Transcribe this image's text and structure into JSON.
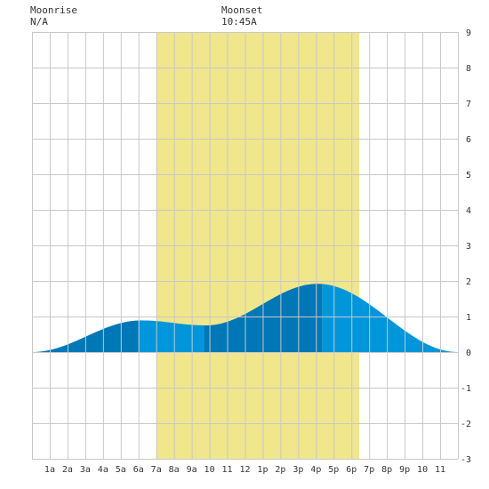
{
  "header": {
    "moonrise_label": "Moonrise",
    "moonrise_value": "N/A",
    "moonset_label": "Moonset",
    "moonset_value": "10:45A"
  },
  "chart_data": {
    "type": "area",
    "title": "",
    "xlabel": "",
    "ylabel": "",
    "xlim": [
      0,
      24
    ],
    "ylim": [
      -3,
      9
    ],
    "grid": true,
    "x_tick_labels": [
      "1a",
      "2a",
      "3a",
      "4a",
      "5a",
      "6a",
      "7a",
      "8a",
      "9a",
      "10",
      "11",
      "12",
      "1p",
      "2p",
      "3p",
      "4p",
      "5p",
      "6p",
      "7p",
      "8p",
      "9p",
      "10",
      "11"
    ],
    "y_tick_labels": [
      "9",
      "8",
      "7",
      "6",
      "5",
      "4",
      "3",
      "2",
      "1",
      "0",
      "-1",
      "-2",
      "-3"
    ],
    "y_ticks": [
      9,
      8,
      7,
      6,
      5,
      4,
      3,
      2,
      1,
      0,
      -1,
      -2,
      -3
    ],
    "daylight": {
      "start": 7.0,
      "end": 18.45
    },
    "tide_extremes": [
      {
        "time": 0.0,
        "height": 0.0
      },
      {
        "time": 6.15,
        "height": 0.89
      },
      {
        "time": 9.8,
        "height": 0.75
      },
      {
        "time": 16.1,
        "height": 1.92
      },
      {
        "time": 24.0,
        "height": 0.0
      }
    ],
    "band_boundaries": [
      6.0,
      9.7,
      16.35
    ],
    "colors": {
      "daylight": "#f0e68c",
      "tide_dark": "#0077b6",
      "tide_light": "#0096dc",
      "grid": "#c8c8c8",
      "background": "#ffffff"
    }
  }
}
